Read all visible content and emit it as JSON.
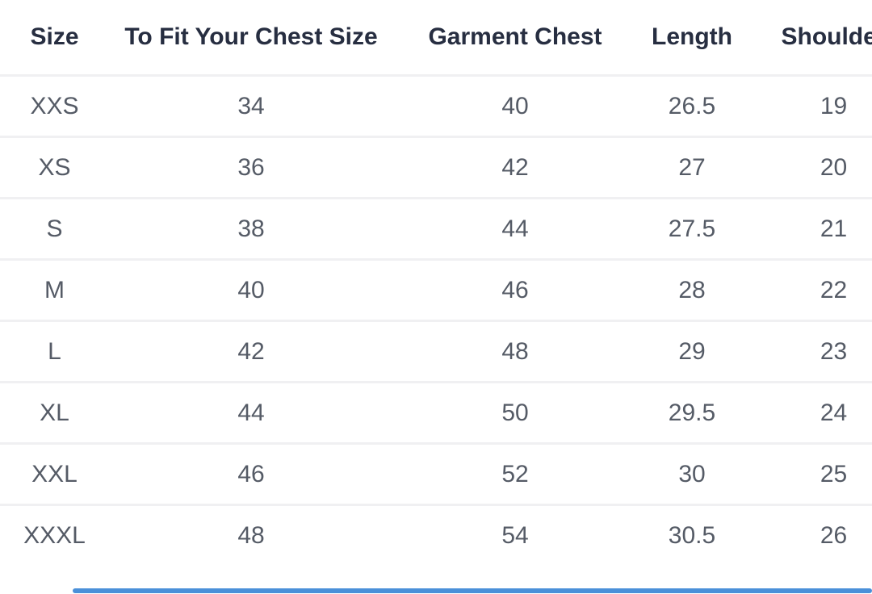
{
  "size_chart": {
    "columns": [
      {
        "label": "Size"
      },
      {
        "label": "To Fit Your Chest Size"
      },
      {
        "label": "Garment Chest"
      },
      {
        "label": "Length"
      },
      {
        "label": "Shoulder"
      }
    ],
    "rows": [
      {
        "size": "XXS",
        "to_fit_chest": "34",
        "garment_chest": "40",
        "length": "26.5",
        "shoulder": "19"
      },
      {
        "size": "XS",
        "to_fit_chest": "36",
        "garment_chest": "42",
        "length": "27",
        "shoulder": "20"
      },
      {
        "size": "S",
        "to_fit_chest": "38",
        "garment_chest": "44",
        "length": "27.5",
        "shoulder": "21"
      },
      {
        "size": "M",
        "to_fit_chest": "40",
        "garment_chest": "46",
        "length": "28",
        "shoulder": "22"
      },
      {
        "size": "L",
        "to_fit_chest": "42",
        "garment_chest": "48",
        "length": "29",
        "shoulder": "23"
      },
      {
        "size": "XL",
        "to_fit_chest": "44",
        "garment_chest": "50",
        "length": "29.5",
        "shoulder": "24"
      },
      {
        "size": "XXL",
        "to_fit_chest": "46",
        "garment_chest": "52",
        "length": "30",
        "shoulder": "25"
      },
      {
        "size": "XXXL",
        "to_fit_chest": "48",
        "garment_chest": "54",
        "length": "30.5",
        "shoulder": "26"
      }
    ],
    "note": "table is wider than viewport; Shoulder column header is clipped at right edge"
  },
  "colors": {
    "header_text": "#272e41",
    "body_text": "#555b66",
    "row_separator": "#f0f0f2",
    "background": "#ffffff",
    "scrollbar_thumb": "#4a90d9"
  }
}
